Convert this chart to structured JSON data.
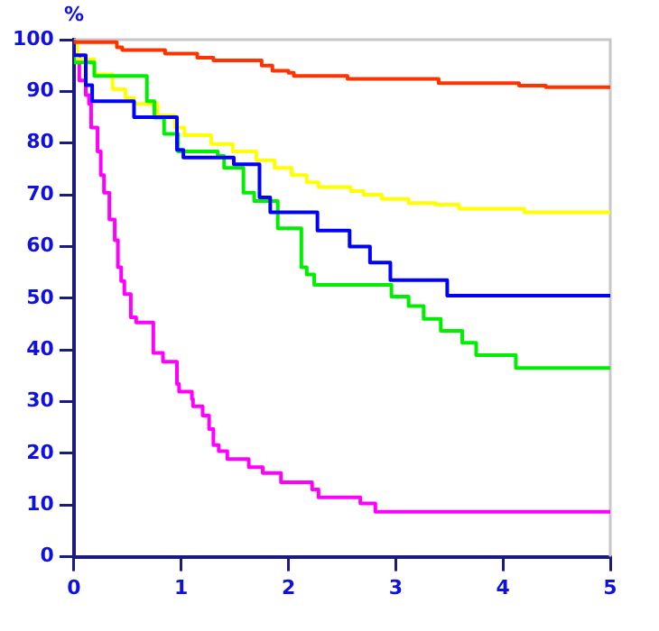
{
  "chart_data": {
    "type": "step",
    "ylabel": "%",
    "xlim": [
      0,
      5
    ],
    "xticks": [
      0,
      1,
      2,
      3,
      4,
      5
    ],
    "ylim": [
      0,
      100
    ],
    "yticks": [
      0,
      10,
      20,
      30,
      40,
      50,
      60,
      70,
      80,
      90,
      100
    ],
    "grid": false,
    "legend": false,
    "marker": "none",
    "series": [
      {
        "color": "#ff3300",
        "x": [
          0,
          0.4,
          0.45,
          0.85,
          1.15,
          1.3,
          1.75,
          1.85,
          2.0,
          2.05,
          2.55,
          3.4,
          4.15,
          4.4,
          4.6,
          5
        ],
        "values": [
          100,
          99.5,
          98.5,
          98,
          97.3,
          96.5,
          96,
          95,
          94,
          93.6,
          93,
          92.4,
          91.6,
          91.1,
          90.8,
          90.8
        ]
      },
      {
        "color": "#0000ff",
        "x": [
          0,
          0.11,
          0.17,
          0.56,
          0.96,
          1.02,
          1.49,
          1.73,
          1.83,
          2.27,
          2.57,
          2.76,
          2.95,
          3.48,
          4.4,
          5
        ],
        "values": [
          100,
          97,
          91.2,
          88.1,
          85,
          78.7,
          77.2,
          75.9,
          69.5,
          66.6,
          63.1,
          60,
          56.9,
          53.5,
          50.5,
          50.5
        ]
      },
      {
        "color": "#00ee00",
        "x": [
          0,
          0.19,
          0.68,
          0.75,
          0.84,
          0.97,
          1.34,
          1.4,
          1.58,
          1.68,
          1.9,
          2.12,
          2.17,
          2.24,
          2.96,
          3.12,
          3.26,
          3.42,
          3.62,
          3.75,
          4.12,
          4.61,
          5
        ],
        "values": [
          100,
          95.6,
          93,
          88.1,
          84.9,
          81.8,
          78.4,
          77.5,
          75.2,
          70.4,
          68.8,
          63.5,
          56,
          54.6,
          52.6,
          50.3,
          48.5,
          46,
          43.7,
          41.4,
          39,
          36.5,
          36.5
        ]
      },
      {
        "color": "#ffff00",
        "x": [
          0,
          0.03,
          0.19,
          0.36,
          0.48,
          0.56,
          0.78,
          0.94,
          1.03,
          1.28,
          1.48,
          1.7,
          1.87,
          2.03,
          2.17,
          2.28,
          2.58,
          2.7,
          2.87,
          3.12,
          3.37,
          3.59,
          4.2,
          4.4,
          4.6,
          5
        ],
        "values": [
          100,
          99,
          96.2,
          93.3,
          90.4,
          88.7,
          87.6,
          85.3,
          83,
          81.5,
          79.8,
          78.4,
          76.7,
          75.2,
          73.8,
          72.4,
          71.5,
          70.7,
          70,
          69.2,
          68.4,
          68.1,
          67.3,
          66.6,
          66.6,
          66.6
        ]
      },
      {
        "color": "#ff00ff",
        "x": [
          0,
          0.05,
          0.11,
          0.14,
          0.16,
          0.22,
          0.25,
          0.28,
          0.33,
          0.38,
          0.41,
          0.44,
          0.47,
          0.53,
          0.58,
          0.74,
          0.83,
          0.96,
          0.98,
          1.1,
          1.11,
          1.2,
          1.26,
          1.3,
          1.35,
          1.43,
          1.63,
          1.76,
          1.93,
          2.22,
          2.28,
          2.67,
          2.81,
          3.57,
          5
        ],
        "values": [
          100,
          96.8,
          92.1,
          89.3,
          87.6,
          83,
          78.4,
          73.8,
          70.4,
          65.2,
          61.2,
          56,
          53.3,
          50.8,
          46.3,
          45.3,
          39.4,
          37.7,
          33.4,
          31.9,
          30.5,
          29.1,
          27.3,
          24.7,
          21.6,
          20.4,
          18.9,
          17.3,
          16.2,
          14.4,
          13,
          11.5,
          10.3,
          8.7,
          8.7
        ]
      }
    ]
  }
}
